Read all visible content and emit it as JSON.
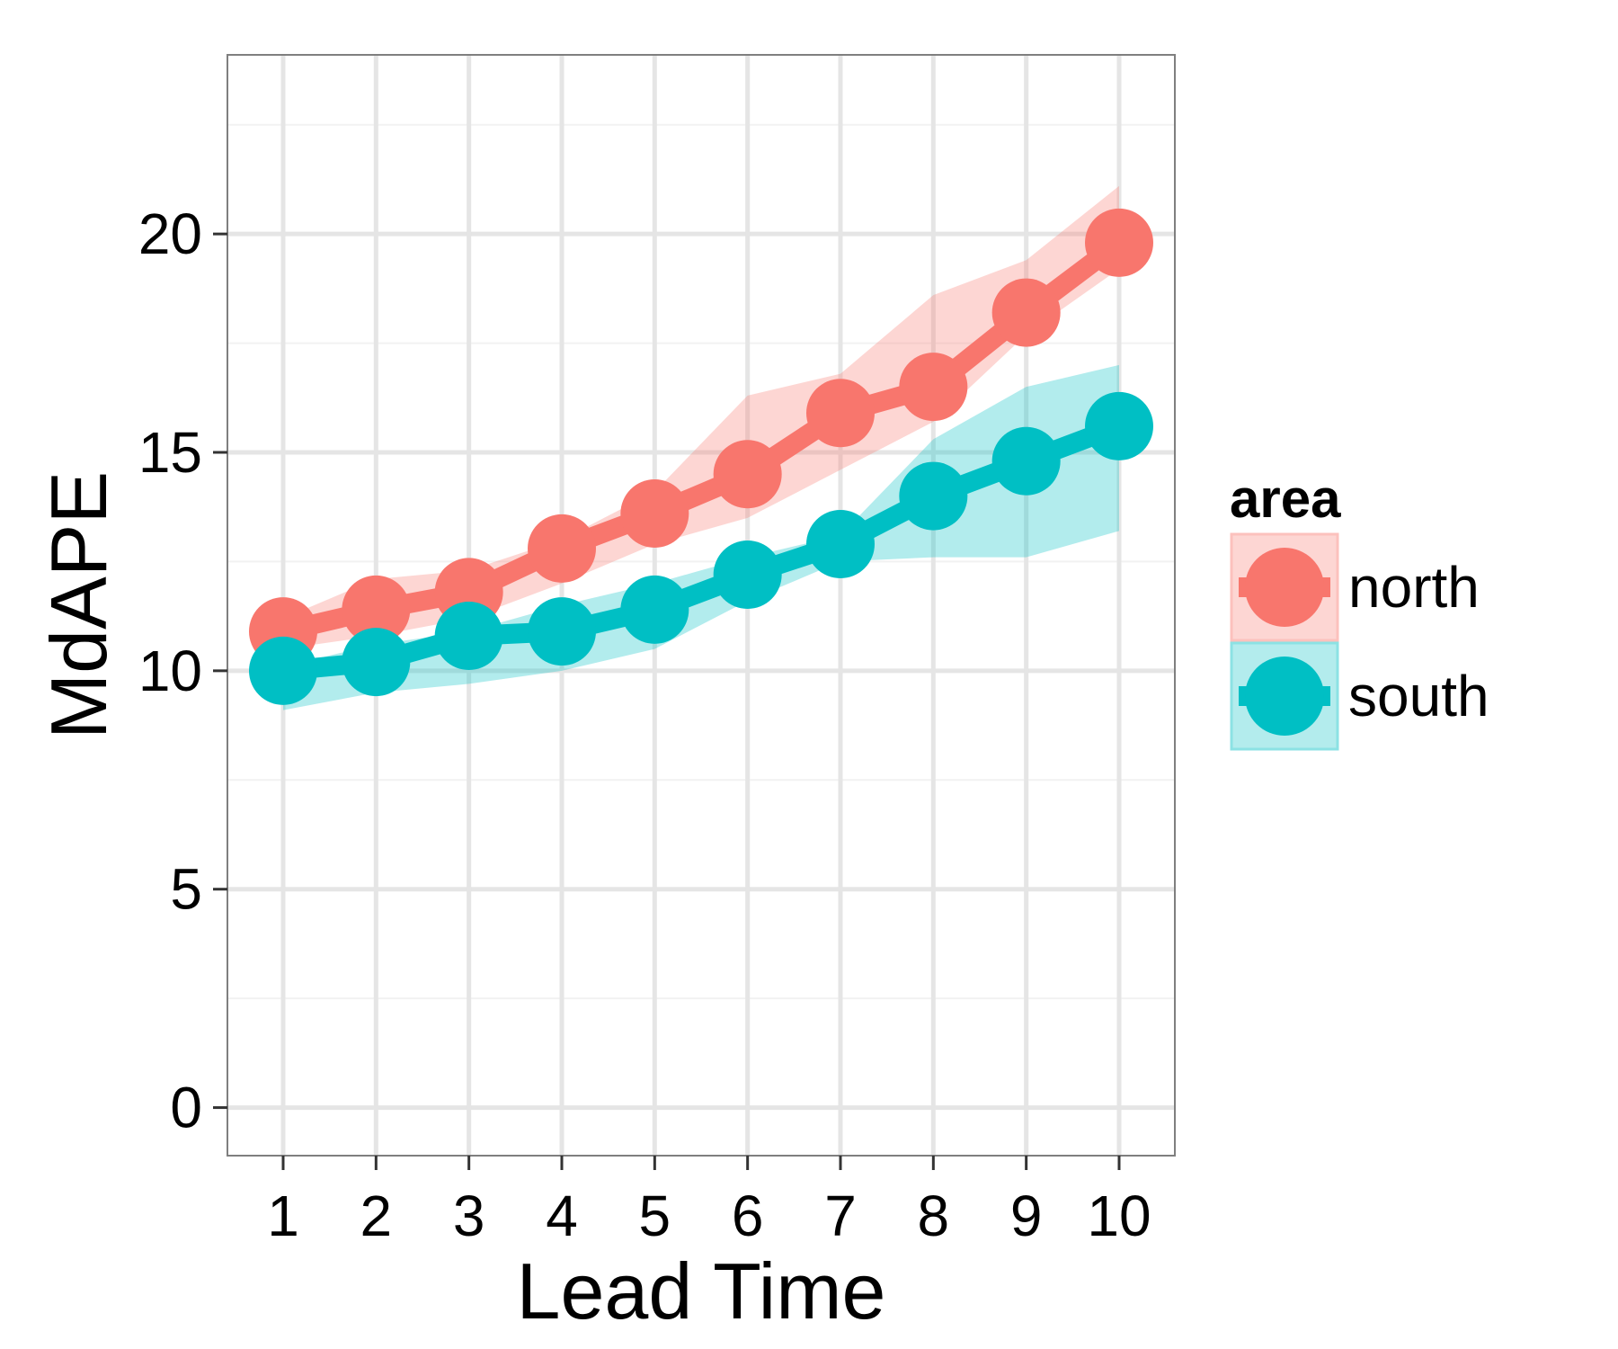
{
  "chart_data": {
    "type": "line",
    "xlabel": "Lead Time",
    "ylabel": "MdAPE",
    "x": [
      1,
      2,
      3,
      4,
      5,
      6,
      7,
      8,
      9,
      10
    ],
    "x_tick_labels": [
      "1",
      "2",
      "3",
      "4",
      "5",
      "6",
      "7",
      "8",
      "9",
      "10"
    ],
    "y_ticks": [
      0,
      5,
      10,
      15,
      20
    ],
    "y_tick_labels": [
      "0",
      "5",
      "10",
      "15",
      "20"
    ],
    "xlim": [
      0.4,
      10.6
    ],
    "ylim": [
      -1.1,
      24.1
    ],
    "grid": true,
    "legend": {
      "title": "area",
      "placement": "right"
    },
    "series": [
      {
        "name": "north",
        "color": "#F8766D",
        "values": [
          10.9,
          11.4,
          11.8,
          12.8,
          13.6,
          14.5,
          15.9,
          16.5,
          18.2,
          19.8
        ],
        "band_lower": [
          10.5,
          10.8,
          11.2,
          12.0,
          12.9,
          13.5,
          14.6,
          15.7,
          17.7,
          19.2
        ],
        "band_upper": [
          11.2,
          12.1,
          12.3,
          13.0,
          14.1,
          16.3,
          16.8,
          18.6,
          19.4,
          21.1
        ]
      },
      {
        "name": "south",
        "color": "#00BFC4",
        "values": [
          10.0,
          10.2,
          10.8,
          10.9,
          11.4,
          12.2,
          12.9,
          14.0,
          14.8,
          15.6
        ],
        "band_lower": [
          9.1,
          9.5,
          9.7,
          10.0,
          10.5,
          11.6,
          12.5,
          12.6,
          12.6,
          13.2
        ],
        "band_upper": [
          10.1,
          10.6,
          10.9,
          11.5,
          12.0,
          12.6,
          13.1,
          15.3,
          16.5,
          17.0
        ]
      }
    ]
  }
}
